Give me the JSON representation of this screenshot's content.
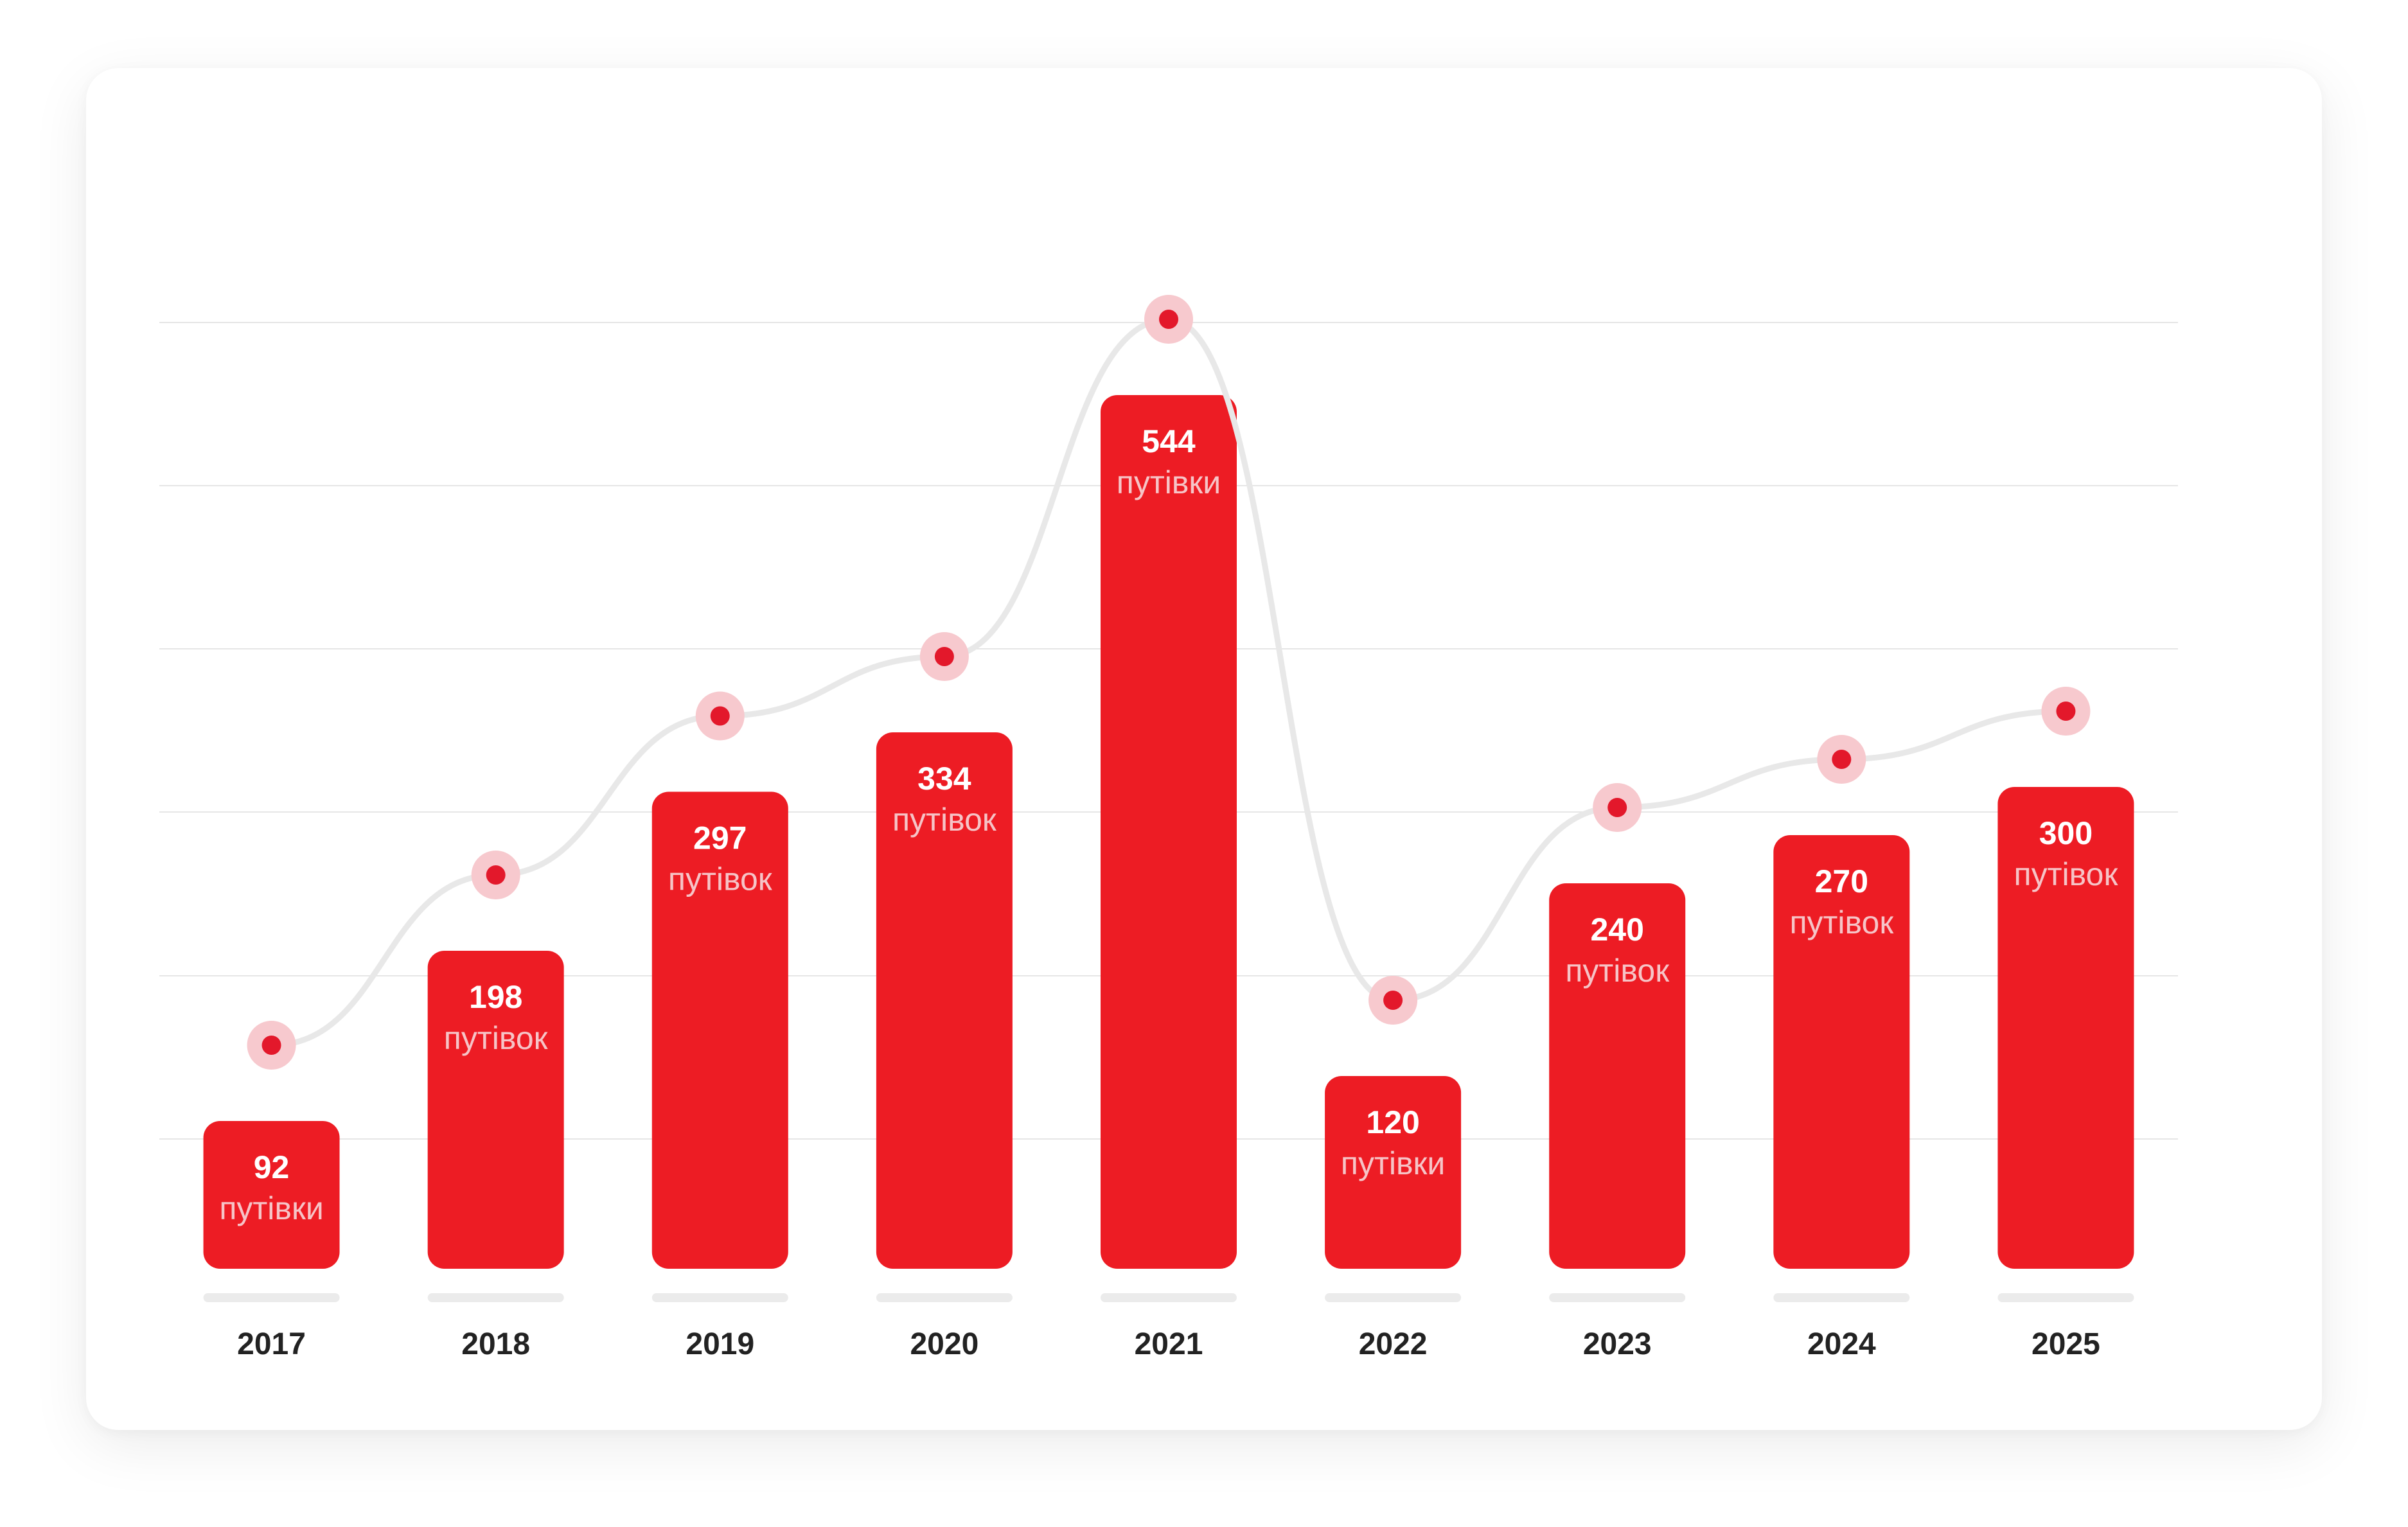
{
  "chart_data": {
    "type": "bar",
    "categories": [
      "2017",
      "2018",
      "2019",
      "2020",
      "2021",
      "2022",
      "2023",
      "2024",
      "2025"
    ],
    "values": [
      92,
      198,
      297,
      334,
      544,
      120,
      240,
      270,
      300
    ],
    "unit_labels": [
      "путівки",
      "путівок",
      "путівок",
      "путівок",
      "путівки",
      "путівки",
      "путівок",
      "путівок",
      "путівок"
    ],
    "ylim": [
      0,
      600
    ],
    "trend_line": true,
    "grid": true,
    "title": "",
    "xlabel": "",
    "ylabel": ""
  },
  "colors": {
    "bar": "#ed1c24",
    "trend_line": "#e8e8e8",
    "marker": "#e3182b",
    "marker_halo": "#f7c9ce",
    "grid": "#e6e6e6",
    "axis_pill": "#ebebeb",
    "value_text": "#ffffff",
    "unit_text": "#f6c4c7",
    "year_text": "#222222"
  }
}
